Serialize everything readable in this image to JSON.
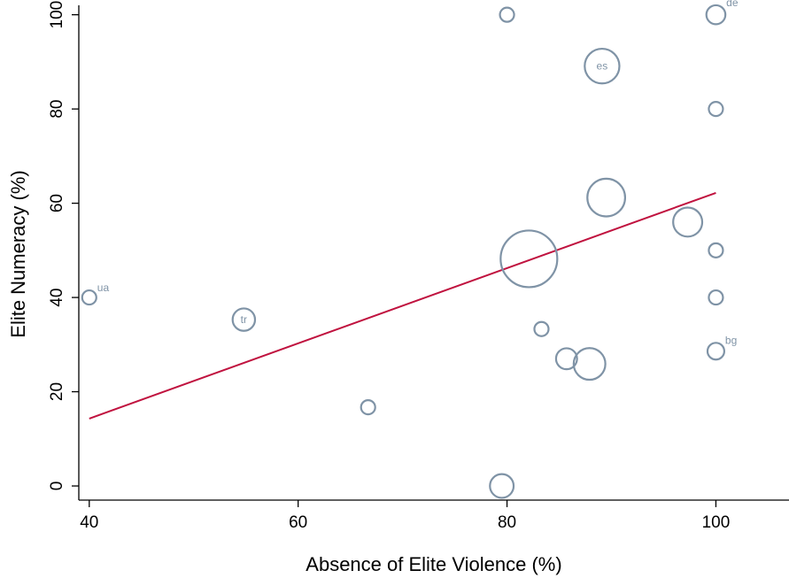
{
  "chart_data": {
    "type": "scatter",
    "title": "",
    "xlabel": "Absence of Elite Violence (%)",
    "ylabel": "Elite Numeracy (%)",
    "xlim": [
      39,
      107
    ],
    "ylim": [
      -3,
      102
    ],
    "xticks": [
      "40",
      "60",
      "80",
      "100"
    ],
    "yticks": [
      "0",
      "20",
      "40",
      "60",
      "80",
      "100"
    ],
    "grid": false,
    "marker_color": "#7f93a6",
    "fit_line_color": "#c0123f",
    "fit_line": {
      "x": [
        40,
        100
      ],
      "y": [
        14.3,
        62.2
      ]
    },
    "points": [
      {
        "x": 40.0,
        "y": 40.0,
        "weight": 1.0,
        "label": "ua"
      },
      {
        "x": 54.8,
        "y": 35.3,
        "weight": 2.5,
        "label": "tr"
      },
      {
        "x": 66.7,
        "y": 16.7,
        "weight": 1.0,
        "label": ""
      },
      {
        "x": 79.5,
        "y": 0.0,
        "weight": 2.8,
        "label": ""
      },
      {
        "x": 80.0,
        "y": 100.0,
        "weight": 1.0,
        "label": ""
      },
      {
        "x": 82.1,
        "y": 48.2,
        "weight": 16.0,
        "label": ""
      },
      {
        "x": 83.3,
        "y": 33.3,
        "weight": 1.0,
        "label": ""
      },
      {
        "x": 85.7,
        "y": 27.0,
        "weight": 2.2,
        "label": ""
      },
      {
        "x": 87.9,
        "y": 25.9,
        "weight": 5.0,
        "label": ""
      },
      {
        "x": 89.1,
        "y": 89.1,
        "weight": 6.0,
        "label": "es"
      },
      {
        "x": 89.5,
        "y": 61.2,
        "weight": 7.1,
        "label": ""
      },
      {
        "x": 97.3,
        "y": 56.0,
        "weight": 4.2,
        "label": ""
      },
      {
        "x": 100.0,
        "y": 100.0,
        "weight": 1.8,
        "label": "de"
      },
      {
        "x": 100.0,
        "y": 80.0,
        "weight": 1.0,
        "label": ""
      },
      {
        "x": 100.0,
        "y": 50.0,
        "weight": 1.0,
        "label": ""
      },
      {
        "x": 100.0,
        "y": 40.0,
        "weight": 1.0,
        "label": ""
      },
      {
        "x": 100.0,
        "y": 28.6,
        "weight": 1.4,
        "label": "bg"
      }
    ]
  }
}
